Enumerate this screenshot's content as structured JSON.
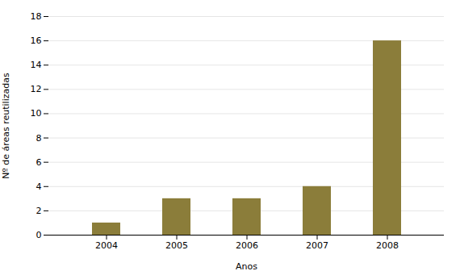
{
  "chart_data": {
    "type": "bar",
    "categories": [
      "2004",
      "2005",
      "2006",
      "2007",
      "2008"
    ],
    "values": [
      1,
      3,
      3,
      4,
      16
    ],
    "color": "#8B7D3A",
    "xlabel": "Anos",
    "ylabel": "Nº de áreas reutilizadas",
    "ylim": [
      0,
      18
    ],
    "yticks": [
      0,
      2,
      4,
      6,
      8,
      10,
      12,
      14,
      16,
      18
    ],
    "grid": true
  }
}
